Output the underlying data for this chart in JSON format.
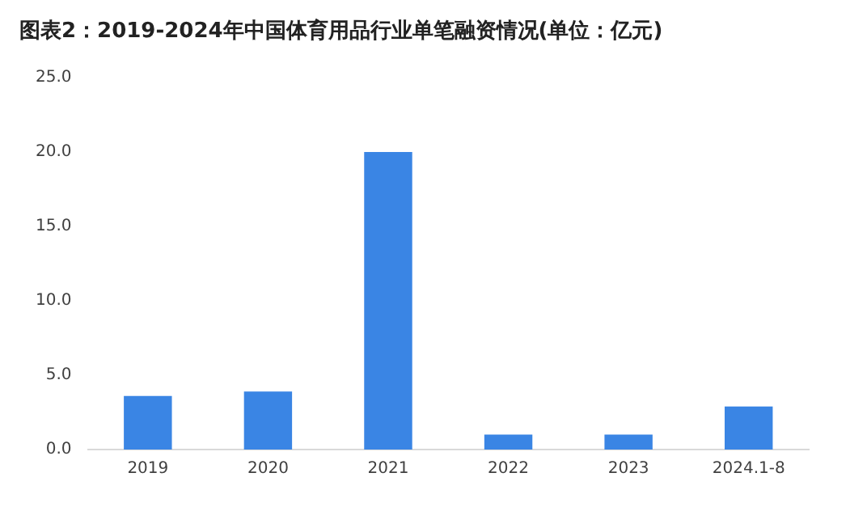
{
  "chart_data": {
    "type": "bar",
    "title": "图表2：2019-2024年中国体育用品行业单笔融资情况(单位：亿元)",
    "categories": [
      "2019",
      "2020",
      "2021",
      "2022",
      "2023",
      "2024.1-8"
    ],
    "values": [
      3.6,
      3.9,
      20.0,
      1.0,
      1.0,
      2.9
    ],
    "color": "#3a85e4",
    "ylim": [
      0,
      25
    ],
    "yticks": [
      {
        "value": 0,
        "label": "0.0"
      },
      {
        "value": 5,
        "label": "5.0"
      },
      {
        "value": 10,
        "label": "10.0"
      },
      {
        "value": 15,
        "label": "15.0"
      },
      {
        "value": 20,
        "label": "20.0"
      },
      {
        "value": 25,
        "label": "25.0"
      }
    ],
    "grid": false,
    "legend": false
  }
}
